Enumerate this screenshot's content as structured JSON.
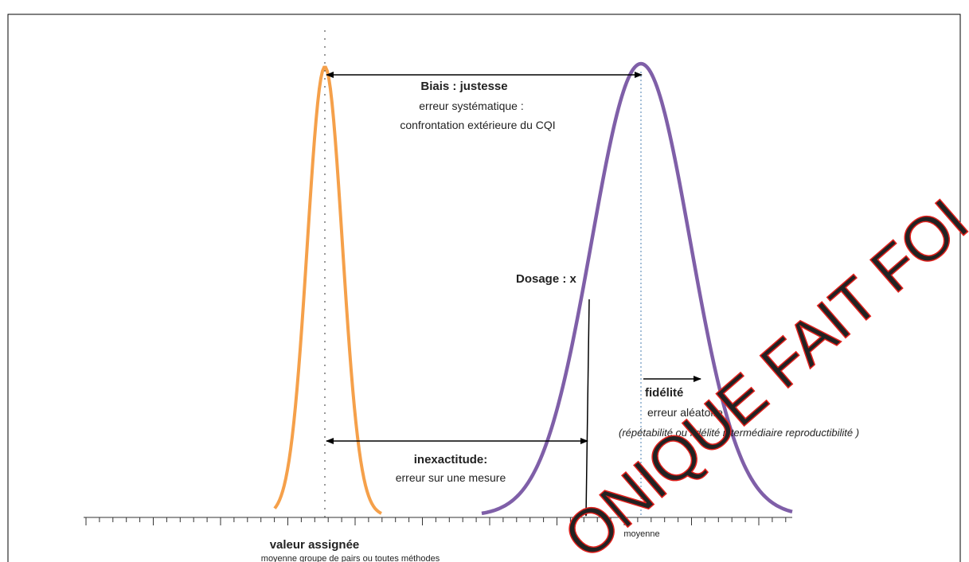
{
  "diagram": {
    "bias": {
      "title": "Biais : justesse",
      "line1": "erreur systématique :",
      "line2": "confrontation extérieure du CQI"
    },
    "dosage": "Dosage : x",
    "precision": {
      "title": "fidélité",
      "line1": "erreur aléatoire",
      "line2": "(répétabilité ou fidélité intermédiaire  reproductibilité )"
    },
    "inaccuracy": {
      "title": "inexactitude:",
      "line1": "erreur sur une mesure"
    },
    "mean_label": "moyenne",
    "assigned": {
      "title": "valeur assignée",
      "line1": "moyenne groupe de pairs ou toutes méthodes"
    },
    "watermark": "ONIQUE FAIT FOI"
  }
}
